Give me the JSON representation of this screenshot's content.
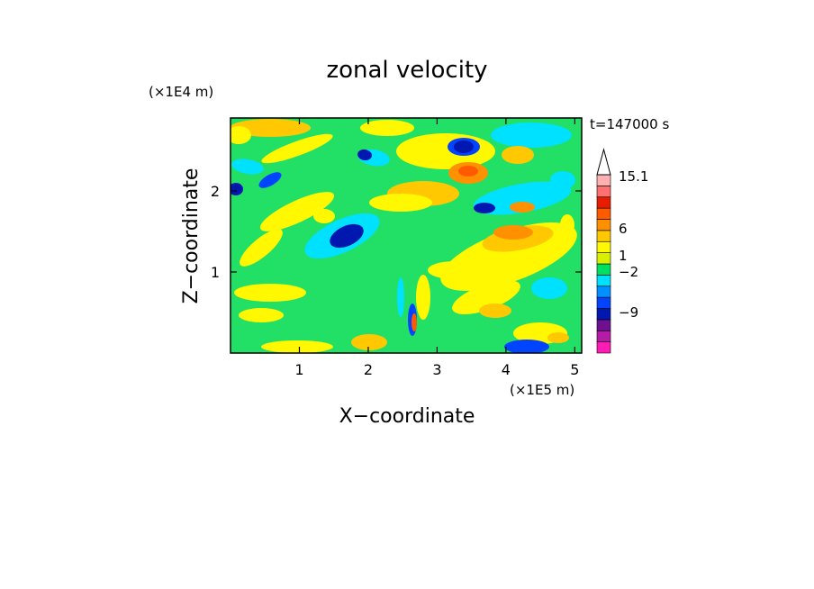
{
  "chart_data": {
    "type": "heatmap",
    "title": "zonal velocity",
    "xlabel": "X−coordinate",
    "ylabel": "Z−coordinate",
    "x_unit": "(×1E5 m)",
    "y_unit": "(×1E4 m)",
    "time_label": "t=147000 s",
    "xlim": [
      0,
      5.1
    ],
    "ylim": [
      0,
      2.9
    ],
    "x_ticks": [
      "1",
      "2",
      "3",
      "4",
      "5"
    ],
    "y_ticks": [
      "1",
      "2"
    ],
    "colorbar": {
      "colors": [
        "#ff1cb4",
        "#b41ca8",
        "#6e1090",
        "#0018b0",
        "#0044ff",
        "#0090ff",
        "#00e0ff",
        "#00e060",
        "#d8f000",
        "#fff800",
        "#ffc800",
        "#ff9000",
        "#ff5a00",
        "#e81c00",
        "#ff7070",
        "#ffb0b0"
      ],
      "labels": [
        "15.1",
        "6",
        "1",
        "−2",
        "−9"
      ]
    },
    "colors": {
      "background_field": "#22e066",
      "frame": "#000000"
    }
  }
}
